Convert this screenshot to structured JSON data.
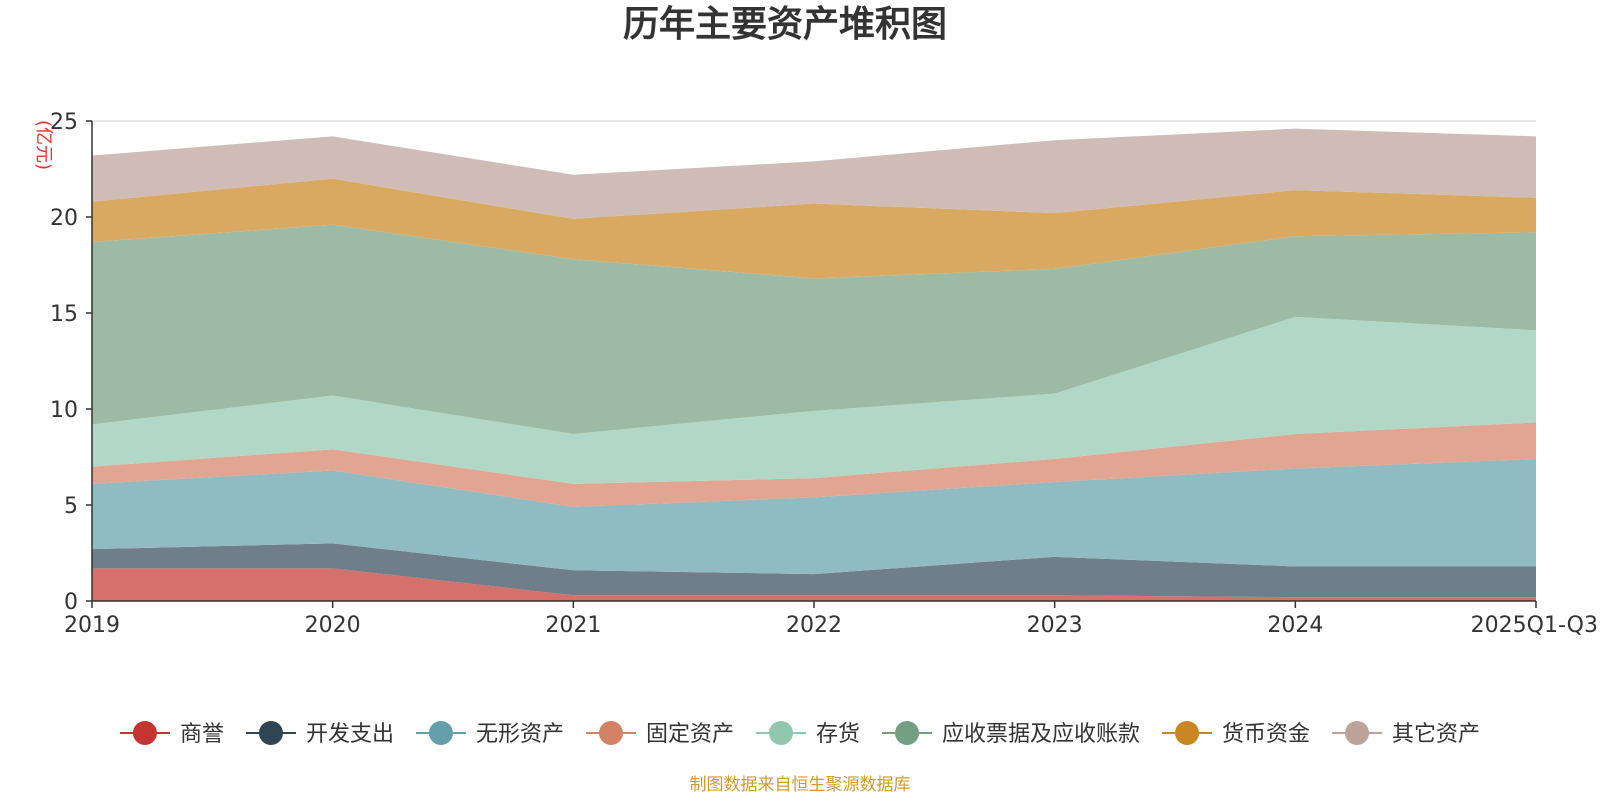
{
  "chart_data": {
    "type": "area",
    "stacked": true,
    "title": "历年主要资产堆积图",
    "ylabel": "亿元",
    "ylabel_display": "(亿元)",
    "categories": [
      "2019",
      "2020",
      "2021",
      "2022",
      "2023",
      "2024",
      "2025Q1-Q3"
    ],
    "ylim": [
      0,
      25
    ],
    "yticks": [
      "0",
      "5",
      "10",
      "15",
      "20",
      "25"
    ],
    "grid": true,
    "legend_position": "bottom",
    "series": [
      {
        "name": "商誉",
        "color": "#c23531",
        "fill": "#d4716b",
        "values": [
          1.7,
          1.7,
          0.3,
          0.3,
          0.3,
          0.2,
          0.2
        ]
      },
      {
        "name": "开发支出",
        "color": "#2f4554",
        "fill": "#6f7e8a",
        "values": [
          1.0,
          1.3,
          1.3,
          1.1,
          2.0,
          1.6,
          1.6
        ]
      },
      {
        "name": "无形资产",
        "color": "#61a0a8",
        "fill": "#90bbc2",
        "values": [
          3.4,
          3.8,
          3.3,
          4.0,
          3.9,
          5.1,
          5.6
        ]
      },
      {
        "name": "固定资产",
        "color": "#d48265",
        "fill": "#e2a592",
        "values": [
          0.9,
          1.1,
          1.2,
          1.0,
          1.2,
          1.8,
          1.9
        ]
      },
      {
        "name": "存货",
        "color": "#91c7ae",
        "fill": "#b1d8c6",
        "values": [
          2.2,
          2.8,
          2.6,
          3.5,
          3.4,
          6.1,
          4.8
        ]
      },
      {
        "name": "应收票据及应收账款",
        "color": "#749f83",
        "fill": "#9dbaa5",
        "values": [
          9.5,
          8.9,
          9.1,
          6.9,
          6.5,
          4.2,
          5.1
        ]
      },
      {
        "name": "货币资金",
        "color": "#ca8622",
        "fill": "#d9a861",
        "values": [
          2.1,
          2.4,
          2.1,
          3.9,
          2.9,
          2.4,
          1.8
        ]
      },
      {
        "name": "其它资产",
        "color": "#bda29a",
        "fill": "#d0bcb7",
        "values": [
          2.4,
          2.2,
          2.3,
          2.2,
          3.8,
          3.2,
          3.2
        ]
      }
    ],
    "source_note": "制图数据来自恒生聚源数据库"
  }
}
